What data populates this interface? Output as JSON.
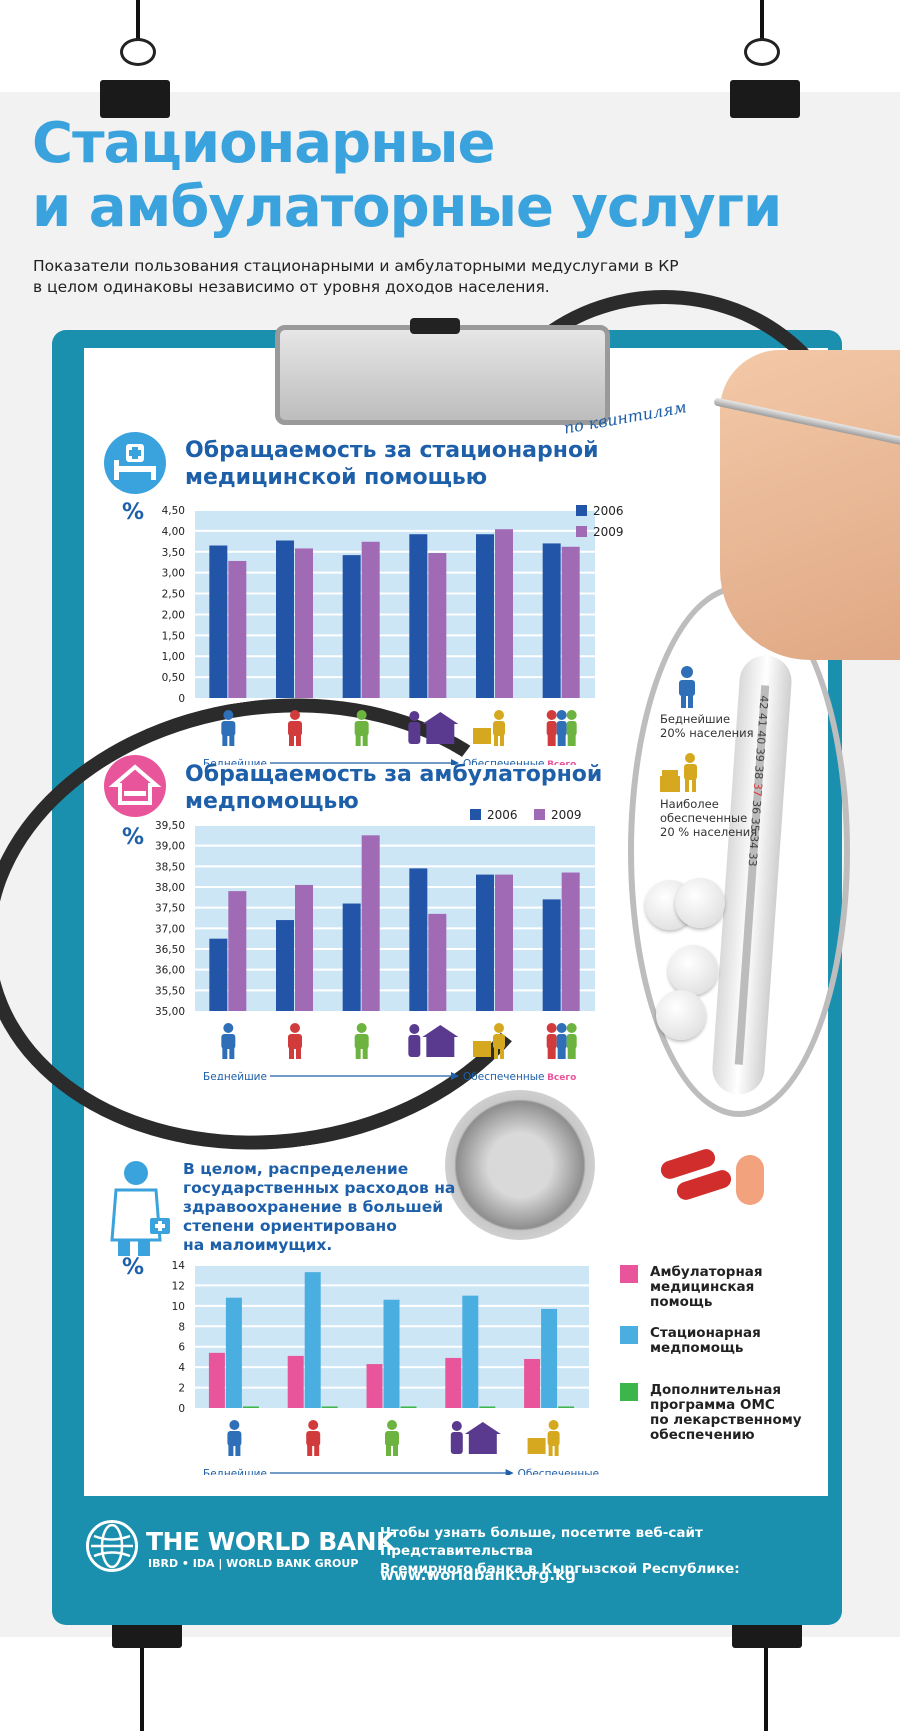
{
  "header": {
    "title_line1": "Стационарные",
    "title_line2": "и амбулаторные услуги",
    "subtitle_line1": "Показатели пользования стационарными и амбулаторными медуслугами в КР",
    "subtitle_line2": "в целом одинаковы независимо от уровня доходов населения."
  },
  "handwritten_note": "по квинтилям",
  "section1": {
    "title_line1": "Обращаемость за стационарной",
    "title_line2": "медицинской помощью"
  },
  "section2": {
    "title_line1": "Обращаемость за амбулаторной",
    "title_line2": "медпомощью"
  },
  "section3": {
    "note_lines": [
      "В целом, распределение",
      "государственных расходов на",
      "здравоохранение в большей",
      "степени ориентировано",
      "на малоимущих."
    ]
  },
  "percent_label": "%",
  "axis_poorest": "Беднейшие",
  "axis_richest": "Обеспеченные",
  "axis_total": "Всего",
  "side_legend": {
    "poorest_line1": "Беднейшие",
    "poorest_line2": "20% населения",
    "richest_line1": "Наиболее",
    "richest_line2": "обеспеченные",
    "richest_line3": "20 % населения"
  },
  "thermometer_labels": [
    "42",
    "41",
    "40",
    "39",
    "38",
    "37",
    "36",
    "35",
    "34",
    "33"
  ],
  "colors": {
    "title_blue": "#3aa3dd",
    "dark_blue": "#1d5fa8",
    "bar_2006": "#2255a8",
    "bar_2009": "#a06ab4",
    "outpatient": "#e8559a",
    "inpatient": "#4aaee0",
    "omc": "#3cb54a",
    "plot_bg": "#cde6f6",
    "board": "#1b8fae",
    "quintile_icons": [
      "#2e6fb7",
      "#d23b3b",
      "#6cb33f",
      "#5a3a8e",
      "#d6a81f"
    ]
  },
  "quintile_icons": [
    "person-icon",
    "worker-icon",
    "person-icon",
    "house-family-icon",
    "wealthy-person-icon",
    "group-icon"
  ],
  "chart_data": [
    {
      "type": "bar",
      "title": "Обращаемость за стационарной медицинской помощью",
      "ylabel": "%",
      "ylim": [
        0,
        4.5
      ],
      "yticks": [
        "0",
        "0,50",
        "1,00",
        "1,50",
        "2,00",
        "2,50",
        "3,00",
        "3,50",
        "4,00",
        "4,50"
      ],
      "categories": [
        "Q1",
        "Q2",
        "Q3",
        "Q4",
        "Q5",
        "Всего"
      ],
      "series": [
        {
          "name": "2006",
          "values": [
            3.65,
            3.77,
            3.42,
            3.92,
            3.92,
            3.7
          ]
        },
        {
          "name": "2009",
          "values": [
            3.28,
            3.58,
            3.74,
            3.47,
            4.04,
            3.62
          ]
        }
      ]
    },
    {
      "type": "bar",
      "title": "Обращаемость за амбулаторной медпомощью",
      "ylabel": "%",
      "ylim": [
        35,
        39.5
      ],
      "yticks": [
        "35,00",
        "35,50",
        "36,00",
        "36,50",
        "37,00",
        "37,50",
        "38,00",
        "38,50",
        "39,00",
        "39,50"
      ],
      "categories": [
        "Q1",
        "Q2",
        "Q3",
        "Q4",
        "Q5",
        "Всего"
      ],
      "series": [
        {
          "name": "2006",
          "values": [
            36.75,
            37.2,
            37.6,
            38.45,
            38.3,
            37.7
          ]
        },
        {
          "name": "2009",
          "values": [
            37.9,
            38.05,
            39.25,
            37.35,
            38.3,
            38.35
          ]
        }
      ]
    },
    {
      "type": "bar",
      "ylabel": "%",
      "ylim": [
        0,
        14
      ],
      "yticks": [
        "0",
        "2",
        "4",
        "6",
        "8",
        "10",
        "12",
        "14"
      ],
      "categories": [
        "Q1",
        "Q2",
        "Q3",
        "Q4",
        "Q5"
      ],
      "series": [
        {
          "name": "Амбулаторная медицинская помощь",
          "values": [
            5.4,
            5.1,
            4.3,
            4.9,
            4.8
          ]
        },
        {
          "name": "Стационарная медпомощь",
          "values": [
            10.8,
            13.3,
            10.6,
            11.0,
            9.7
          ]
        },
        {
          "name": "Дополнительная программа ОМС по лекарственному обеспечению",
          "values": [
            0.15,
            0.15,
            0.15,
            0.15,
            0.15
          ]
        }
      ]
    }
  ],
  "chart3_legend": {
    "outpatient_lines": [
      "Амбулаторная",
      "медицинская",
      "помощь"
    ],
    "inpatient_lines": [
      "Стационарная",
      "медпомощь"
    ],
    "omc_lines": [
      "Дополнительная",
      "программа ОМС",
      "по лекарственному",
      "обеспечению"
    ]
  },
  "footer": {
    "org_name": "THE WORLD BANK",
    "org_sub": "IBRD • IDA | WORLD BANK GROUP",
    "info_line1": "Чтобы узнать больше, посетите веб-сайт Представительства",
    "info_line2": "Всемирного банка в Кыргызской Республике:",
    "url": "www.worldbank.org.kg"
  }
}
